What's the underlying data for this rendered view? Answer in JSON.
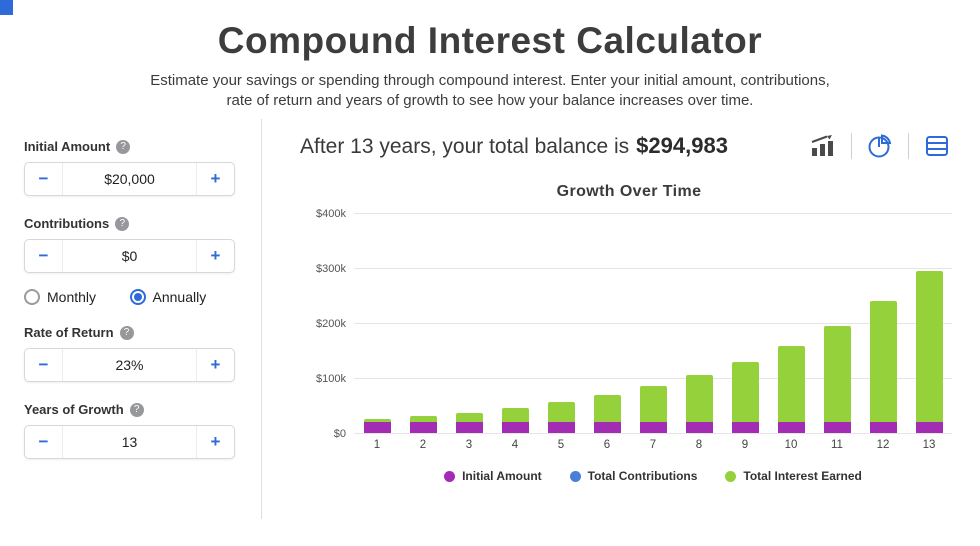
{
  "page": {
    "title": "Compound Interest Calculator",
    "subtitle_line1": "Estimate your savings or spending through compound interest. Enter your initial amount, contributions,",
    "subtitle_line2": "rate of return and years of growth to see how your balance increases over time."
  },
  "colors": {
    "accent_blue": "#2e6bd8",
    "initial_amount_purple": "#a32cb5",
    "contributions_blue": "#4a7fd9",
    "interest_green": "#94d13a"
  },
  "icons": {
    "bar_chart_view": "bar-chart-icon",
    "pie_chart_view": "pie-chart-icon",
    "table_view": "table-icon",
    "help": "question-mark-icon"
  },
  "form": {
    "minus": "−",
    "plus": "+",
    "initial_amount": {
      "label": "Initial Amount",
      "value": "$20,000"
    },
    "contributions": {
      "label": "Contributions",
      "value": "$0"
    },
    "frequency": {
      "options": [
        {
          "label": "Monthly",
          "selected": false
        },
        {
          "label": "Annually",
          "selected": true
        }
      ]
    },
    "rate_of_return": {
      "label": "Rate of Return",
      "value": "23%"
    },
    "years_of_growth": {
      "label": "Years of Growth",
      "value": "13"
    }
  },
  "result": {
    "prefix": "After 13 years, your total balance is",
    "total": "$294,983"
  },
  "chart_data": {
    "type": "bar",
    "stacked": true,
    "title": "Growth Over Time",
    "categories": [
      1,
      2,
      3,
      4,
      5,
      6,
      7,
      8,
      9,
      10,
      11,
      12,
      13
    ],
    "series": [
      {
        "name": "Initial Amount",
        "color": "#a32cb5",
        "values": [
          20000,
          20000,
          20000,
          20000,
          20000,
          20000,
          20000,
          20000,
          20000,
          20000,
          20000,
          20000,
          20000
        ]
      },
      {
        "name": "Total Contributions",
        "color": "#4a7fd9",
        "values": [
          0,
          0,
          0,
          0,
          0,
          0,
          0,
          0,
          0,
          0,
          0,
          0,
          0
        ]
      },
      {
        "name": "Total Interest Earned",
        "color": "#94d13a",
        "values": [
          4600,
          10258,
          17217,
          25777,
          36306,
          49256,
          65185,
          84778,
          108877,
          138518,
          174977,
          219822,
          274983
        ]
      }
    ],
    "ylim": [
      0,
      400000
    ],
    "ytick_labels": [
      "$400k",
      "$300k",
      "$200k",
      "$100k",
      "$0"
    ],
    "grid": true,
    "legend_position": "bottom"
  }
}
